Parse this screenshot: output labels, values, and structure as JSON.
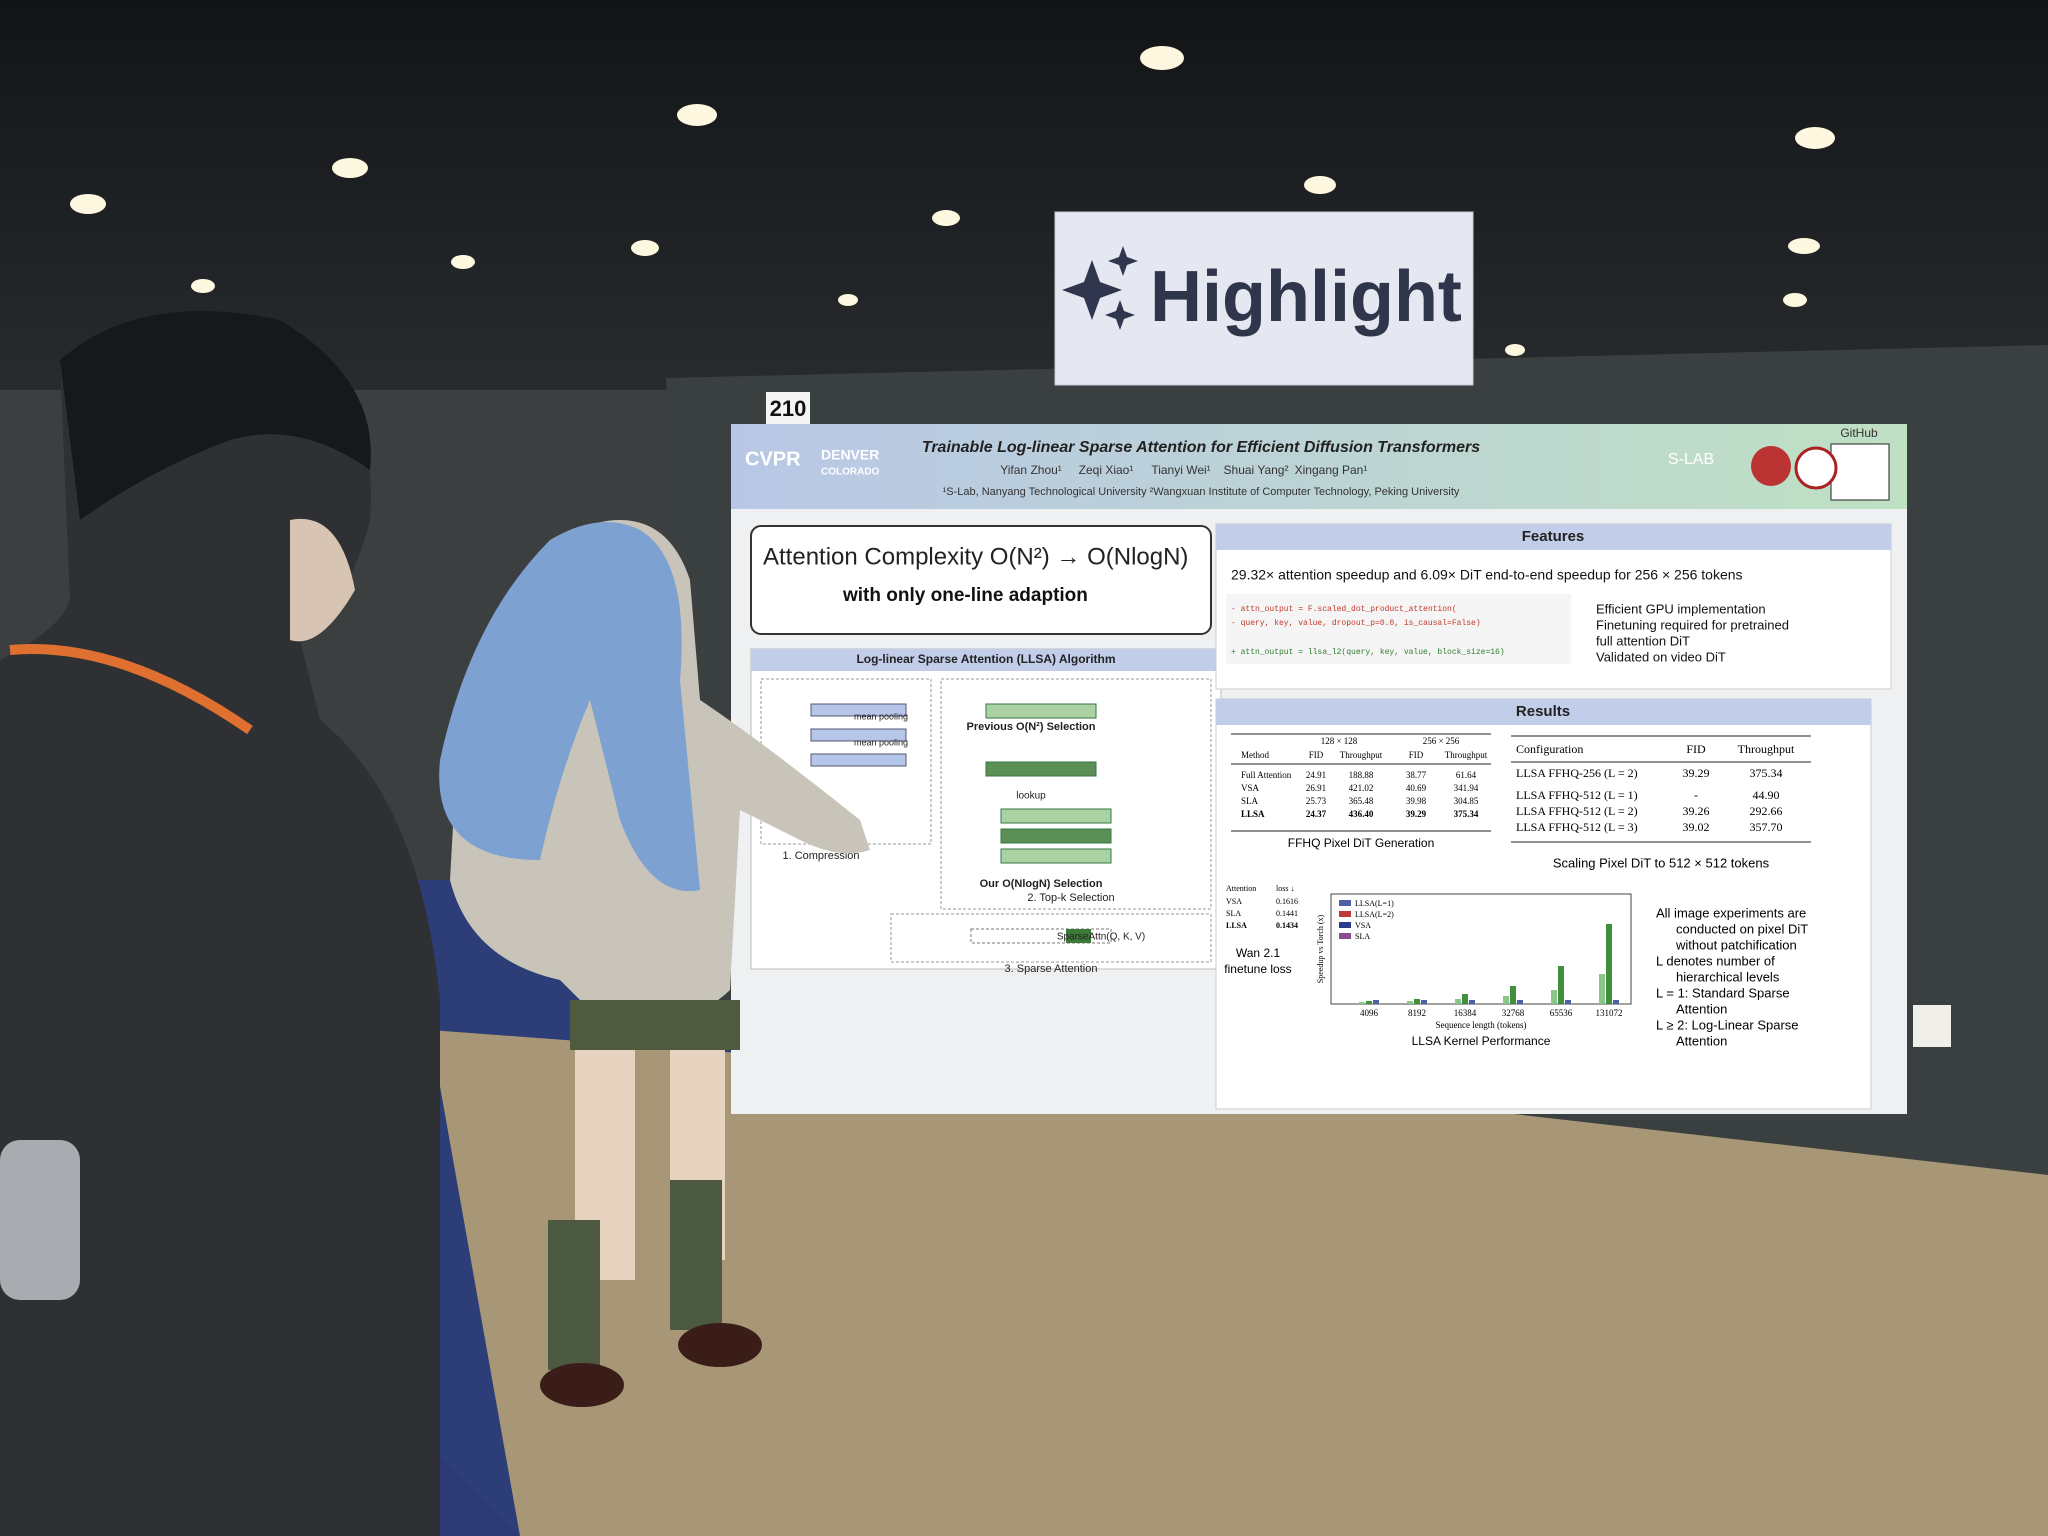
{
  "sign": {
    "text": "Highlight"
  },
  "booth_number": "210",
  "poster": {
    "conference": "CVPR",
    "city": "DENVER",
    "state": "COLORADO",
    "title": "Trainable Log-linear Sparse Attention for Efficient Diffusion Transformers",
    "authors": [
      "Yifan Zhou¹",
      "Zeqi Xiao¹",
      "Tianyi Wei¹",
      "Shuai Yang²",
      "Xingang Pan¹"
    ],
    "affiliations": "¹S-Lab, Nanyang Technological University ²Wangxuan Institute of Computer Technology, Peking University",
    "github": "GitHub",
    "lab": "S-LAB",
    "headline": "Attention Complexity O(N²) → O(NlogN)",
    "headline_sub": "with only one-line adaption",
    "algorithm": {
      "title": "Log-linear Sparse Attention (LLSA) Algorithm",
      "labels": [
        "mean pooling",
        "mean pooling",
        "Previous O(N²) Selection",
        "lookup",
        "Our O(NlogN) Selection",
        "SparseAttn(Q, K, V)"
      ],
      "steps": [
        "1. Compression",
        "2. Top-k Selection",
        "3. Sparse Attention"
      ]
    },
    "features": {
      "title": "Features",
      "lead": "29.32× attention speedup and 6.09× DiT end-to-end speedup for 256 × 256 tokens",
      "code_old": [
        "- attn_output = F.scaled_dot_product_attention(",
        "-         query, key, value, dropout_p=0.0, is_causal=False)"
      ],
      "code_new": "+ attn_output = llsa_l2(query, key, value, block_size=16)",
      "bullets": [
        "Efficient GPU implementation",
        "Finetuning required for pretrained",
        "full attention DiT",
        "Validated on video DiT"
      ]
    },
    "results": {
      "title": "Results",
      "table1": {
        "groups": [
          "128 × 128",
          "256 × 256"
        ],
        "header": [
          "Method",
          "FID",
          "Throughput",
          "FID",
          "Throughput"
        ],
        "rows": [
          [
            "Full Attention",
            "24.91",
            "188.88",
            "38.77",
            "61.64"
          ],
          [
            "VSA",
            "26.91",
            "421.02",
            "40.69",
            "341.94"
          ],
          [
            "SLA",
            "25.73",
            "365.48",
            "39.98",
            "304.85"
          ],
          [
            "LLSA",
            "24.37",
            "436.40",
            "39.29",
            "375.34"
          ]
        ],
        "caption": "FFHQ Pixel DiT Generation"
      },
      "table2": {
        "header": [
          "Configuration",
          "FID",
          "Throughput"
        ],
        "rows": [
          [
            "LLSA FFHQ-256 (L = 2)",
            "39.29",
            "375.34"
          ],
          [
            "LLSA FFHQ-512 (L = 1)",
            "-",
            "44.90"
          ],
          [
            "LLSA FFHQ-512 (L = 2)",
            "39.26",
            "292.66"
          ],
          [
            "LLSA FFHQ-512 (L = 3)",
            "39.02",
            "357.70"
          ]
        ],
        "caption": "Scaling Pixel DiT to 512 × 512 tokens"
      },
      "table3": {
        "header": [
          "Attention",
          "loss ↓"
        ],
        "rows": [
          [
            "VSA",
            "0.1616"
          ],
          [
            "SLA",
            "0.1441"
          ],
          [
            "LLSA",
            "0.1434"
          ]
        ],
        "caption": [
          "Wan 2.1",
          "finetune loss"
        ]
      },
      "chart": {
        "title": "LLSA Kernel Performance",
        "ylabel": "Speedup vs Torch (x)",
        "xlabel": "Sequence length (tokens)",
        "categories": [
          "4096",
          "8192",
          "16384",
          "32768",
          "65536",
          "131072"
        ],
        "legend": [
          "LLSA(L=1)",
          "LLSA(L=2)",
          "VSA",
          "SLA"
        ]
      },
      "notes": [
        "All image experiments are",
        "conducted on pixel DiT",
        "without patchification",
        "L denotes number of",
        "hierarchical levels",
        "L = 1: Standard Sparse",
        "Attention",
        "L ≥ 2: Log-Linear Sparse",
        "Attention"
      ]
    }
  }
}
